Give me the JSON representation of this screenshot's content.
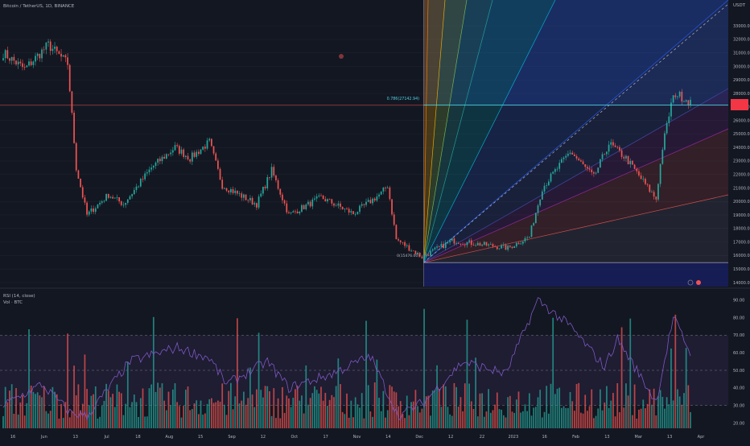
{
  "header": {
    "symbol_title": "Bitcoin / TetherUS, 1D, BINANCE",
    "currency": "USDT"
  },
  "lower_pane": {
    "rsi_label": "RSI (14, close)",
    "vol_label": "Vol · BTC"
  },
  "annotations": {
    "fib_level_label": "0.786(27142.94)",
    "anchor_low_label": "0(15476.00)"
  },
  "colors": {
    "background": "#131722",
    "up": "#26a69a",
    "down": "#ef5350",
    "rsi_line": "#7e57c2",
    "fib_line": "#4dd0e1",
    "resistance_line": "#ef5350",
    "price_marker": "#f23645"
  },
  "chart_data": [
    {
      "type": "candlestick",
      "title": "Bitcoin / TetherUS, 1D, BINANCE",
      "y_axis_ticks": [
        14000,
        15000,
        16000,
        17000,
        18000,
        19000,
        20000,
        21000,
        22000,
        23000,
        24000,
        25000,
        26000,
        27000,
        28000,
        29000,
        30000,
        31000,
        32000,
        33000
      ],
      "y_tick_labels": [
        "14000.00",
        "15000.00",
        "16000.00",
        "17000.00",
        "18000.00",
        "19000.00",
        "20000.00",
        "21000.00",
        "22000.00",
        "23000.00",
        "24000.00",
        "25000.00",
        "26000.00",
        "27000.00",
        "28000.00",
        "29000.00",
        "30000.00",
        "31000.00",
        "32000.00",
        "33000.00"
      ],
      "ylim": [
        13700,
        34200
      ],
      "x_ticks": [
        "16",
        "Jun",
        "13",
        "Jul",
        "18",
        "Aug",
        "15",
        "Sep",
        "12",
        "Oct",
        "17",
        "Nov",
        "14",
        "Dec",
        "12",
        "22",
        "2023",
        "16",
        "Feb",
        "13",
        "Mar",
        "13",
        "Apr"
      ],
      "date_range": [
        "2022-05-10",
        "2023-03-26"
      ],
      "current_price": 27400,
      "key_levels": {
        "fib_0_786": 27142.94,
        "anchor_low": 15476.0
      },
      "price_path_points": [
        [
          "2022-05-10",
          31000
        ],
        [
          "2022-05-20",
          29800
        ],
        [
          "2022-05-31",
          31600
        ],
        [
          "2022-06-09",
          30200
        ],
        [
          "2022-06-13",
          22500
        ],
        [
          "2022-06-18",
          19000
        ],
        [
          "2022-06-28",
          20500
        ],
        [
          "2022-07-05",
          19800
        ],
        [
          "2022-07-18",
          22500
        ],
        [
          "2022-07-29",
          24000
        ],
        [
          "2022-08-05",
          23200
        ],
        [
          "2022-08-14",
          24400
        ],
        [
          "2022-08-20",
          21200
        ],
        [
          "2022-09-05",
          19800
        ],
        [
          "2022-09-12",
          22300
        ],
        [
          "2022-09-20",
          19000
        ],
        [
          "2022-10-05",
          20300
        ],
        [
          "2022-10-20",
          19100
        ],
        [
          "2022-11-02",
          20600
        ],
        [
          "2022-11-05",
          21200
        ],
        [
          "2022-11-09",
          17200
        ],
        [
          "2022-11-21",
          15900
        ],
        [
          "2022-12-05",
          17100
        ],
        [
          "2022-12-20",
          16800
        ],
        [
          "2022-12-31",
          16550
        ],
        [
          "2023-01-10",
          17400
        ],
        [
          "2023-01-16",
          21000
        ],
        [
          "2023-01-29",
          23700
        ],
        [
          "2023-02-09",
          21800
        ],
        [
          "2023-02-16",
          24300
        ],
        [
          "2023-02-24",
          23200
        ],
        [
          "2023-03-09",
          20400
        ],
        [
          "2023-03-10",
          20200
        ],
        [
          "2023-03-13",
          24000
        ],
        [
          "2023-03-17",
          27200
        ],
        [
          "2023-03-19",
          28000
        ],
        [
          "2023-03-26",
          27400
        ]
      ]
    },
    {
      "type": "line",
      "name": "RSI (14, close)",
      "y_axis_ticks": [
        20,
        30,
        40,
        50,
        60,
        70,
        80,
        90
      ],
      "y_tick_labels": [
        "20.00",
        "30.00",
        "40.00",
        "50.00",
        "60.00",
        "70.00",
        "80.00",
        "90.00"
      ],
      "ylim": [
        17,
        94
      ],
      "bands": [
        30,
        50,
        70
      ],
      "rsi_path_points": [
        [
          "2022-05-10",
          30
        ],
        [
          "2022-05-28",
          42
        ],
        [
          "2022-06-10",
          26
        ],
        [
          "2022-06-18",
          24
        ],
        [
          "2022-07-08",
          55
        ],
        [
          "2022-07-30",
          63
        ],
        [
          "2022-08-14",
          57
        ],
        [
          "2022-08-22",
          42
        ],
        [
          "2022-09-10",
          55
        ],
        [
          "2022-09-20",
          40
        ],
        [
          "2022-10-10",
          48
        ],
        [
          "2022-10-28",
          58
        ],
        [
          "2022-11-10",
          24
        ],
        [
          "2022-11-22",
          32
        ],
        [
          "2022-12-10",
          55
        ],
        [
          "2022-12-30",
          48
        ],
        [
          "2023-01-14",
          90
        ],
        [
          "2023-01-29",
          75
        ],
        [
          "2023-02-14",
          52
        ],
        [
          "2023-02-20",
          68
        ],
        [
          "2023-03-10",
          32
        ],
        [
          "2023-03-18",
          80
        ],
        [
          "2023-03-26",
          60
        ]
      ]
    }
  ]
}
